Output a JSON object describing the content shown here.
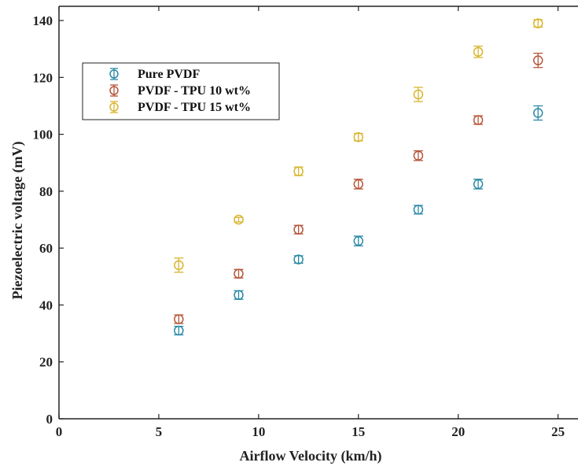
{
  "chart_data": {
    "type": "scatter",
    "title": "",
    "xlabel": "Airflow Velocity (km/h)",
    "ylabel": "Piezoelectric voltage (mV)",
    "xlim": [
      0,
      26
    ],
    "ylim": [
      0,
      145
    ],
    "xticks": [
      0,
      5,
      10,
      15,
      20,
      25
    ],
    "yticks": [
      0,
      20,
      40,
      60,
      80,
      100,
      120,
      140
    ],
    "grid": false,
    "legend_position": "top-left",
    "x": [
      6,
      9,
      12,
      15,
      18,
      21,
      24
    ],
    "series": [
      {
        "name": "Pure PVDF",
        "color": "#2a8aa6",
        "marker": "open-circle",
        "values": [
          31,
          43.5,
          56,
          62.5,
          73.5,
          82.5,
          107.5
        ],
        "errors": [
          1.5,
          1.5,
          1.3,
          1.7,
          1.5,
          1.7,
          2.5
        ]
      },
      {
        "name": "PVDF - TPU 10 wt%",
        "color": "#b5563a",
        "marker": "open-circle",
        "values": [
          35,
          51,
          66.5,
          82.5,
          92.5,
          105,
          126
        ],
        "errors": [
          1.5,
          1.5,
          1.5,
          1.7,
          1.7,
          1.5,
          2.5
        ]
      },
      {
        "name": "PVDF - TPU 15 wt%",
        "color": "#d9b52e",
        "marker": "open-circle",
        "values": [
          54,
          70,
          87,
          99,
          114,
          129,
          139
        ],
        "errors": [
          2.5,
          0.8,
          1.5,
          1.3,
          2.5,
          2.0,
          1.3
        ]
      }
    ]
  }
}
